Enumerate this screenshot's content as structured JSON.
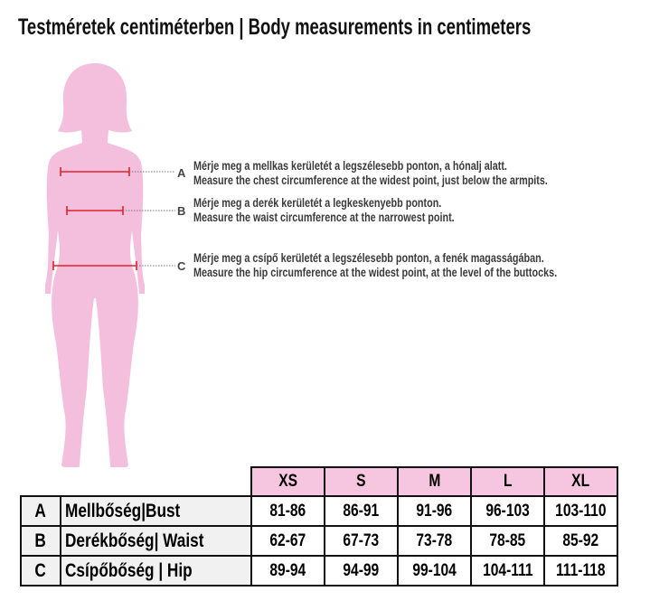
{
  "title": "Testméretek centiméterben | Body measurements in centimeters",
  "colors": {
    "figure": "#f4bfdc",
    "header": "#f6c5df",
    "measure_line": "#e0202a"
  },
  "measurements": [
    {
      "letter": "A",
      "hu": "Mérje meg a mellkas kerületét a legszélesebb ponton, a hónalj alatt.",
      "en": "Measure the chest circumference at the widest point, just below the armpits."
    },
    {
      "letter": "B",
      "hu": "Mérje meg a derék kerületét a legkeskenyebb ponton.",
      "en": "Measure the waist circumference at the narrowest point."
    },
    {
      "letter": "C",
      "hu": "Mérje meg a csípő kerületét a legszélesebb ponton, a fenék magasságában.",
      "en": "Measure the hip circumference at the widest point, at the level of the buttocks."
    }
  ],
  "table": {
    "sizes": [
      "XS",
      "S",
      "M",
      "L",
      "XL"
    ],
    "rows": [
      {
        "letter": "A",
        "label": "Mellbőség|Bust",
        "values": [
          "81-86",
          "86-91",
          "91-96",
          "96-103",
          "103-110"
        ]
      },
      {
        "letter": "B",
        "label": "Derékbőség| Waist",
        "values": [
          "62-67",
          "67-73",
          "73-78",
          "78-85",
          "85-92"
        ]
      },
      {
        "letter": "C",
        "label": "Csípőbőség | Hip",
        "values": [
          "89-94",
          "94-99",
          "99-104",
          "104-111",
          "111-118"
        ]
      }
    ]
  }
}
